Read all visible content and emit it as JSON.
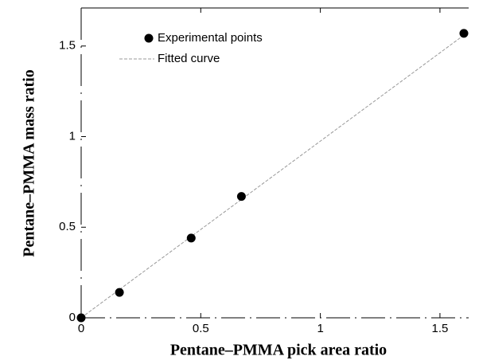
{
  "chart_data": {
    "type": "scatter",
    "xlabel": "Pentane–PMMA pick area ratio",
    "ylabel": "Pentane–PMMA mass ratio",
    "xlim": [
      0,
      1.62
    ],
    "ylim": [
      0,
      1.71
    ],
    "xticks": [
      0,
      0.5,
      1,
      1.5
    ],
    "yticks": [
      0,
      0.5,
      1,
      1.5
    ],
    "legend": "upper left",
    "series": [
      {
        "name": "Experimental points",
        "style": "markers",
        "color": "#000000",
        "x": [
          0,
          0.16,
          0.46,
          0.67,
          1.6
        ],
        "values": [
          0,
          0.14,
          0.44,
          0.67,
          1.57
        ]
      },
      {
        "name": "Fitted curve",
        "style": "line",
        "color": "#999999",
        "x": [
          0,
          1.6
        ],
        "values": [
          0,
          1.56
        ]
      }
    ]
  }
}
